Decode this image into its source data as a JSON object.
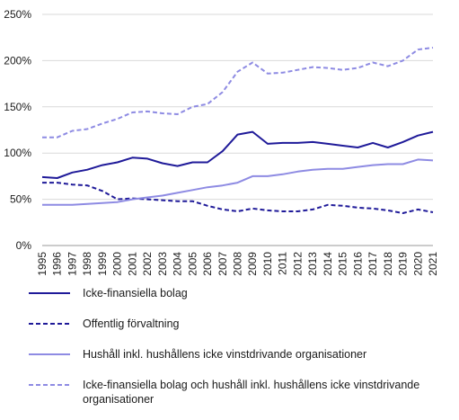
{
  "chart_data": {
    "type": "line",
    "x": [
      "1995",
      "1996",
      "1997",
      "1998",
      "1999",
      "2000",
      "2001",
      "2002",
      "2003",
      "2004",
      "2005",
      "2006",
      "2007",
      "2008",
      "2009",
      "2010",
      "2011",
      "2012",
      "2013",
      "2014",
      "2015",
      "2016",
      "2017",
      "2018",
      "2019",
      "2020",
      "2021"
    ],
    "y_ticks": [
      "0%",
      "50%",
      "100%",
      "150%",
      "200%",
      "250%"
    ],
    "ylim": [
      0,
      250
    ],
    "grid": "horizontal",
    "legend_position": "bottom",
    "series": [
      {
        "name": "Icke-finansiella bolag",
        "color": "#1f1a99",
        "dash": "solid",
        "values": [
          74,
          73,
          79,
          82,
          87,
          90,
          95,
          94,
          89,
          86,
          90,
          90,
          102,
          120,
          123,
          110,
          111,
          111,
          112,
          110,
          108,
          106,
          111,
          106,
          112,
          119,
          123
        ]
      },
      {
        "name": "Offentlig förvaltning",
        "color": "#1f1a99",
        "dash": "dashed",
        "values": [
          68,
          68,
          66,
          65,
          59,
          50,
          51,
          50,
          49,
          48,
          48,
          43,
          39,
          37,
          40,
          38,
          37,
          37,
          39,
          44,
          43,
          41,
          40,
          38,
          35,
          39,
          36
        ]
      },
      {
        "name": "Hushåll inkl. hushållens icke vinstdrivande organisationer",
        "color": "#8e8be3",
        "dash": "solid",
        "values": [
          44,
          44,
          44,
          45,
          46,
          47,
          50,
          52,
          54,
          57,
          60,
          63,
          65,
          68,
          75,
          75,
          77,
          80,
          82,
          83,
          83,
          85,
          87,
          88,
          88,
          93,
          92
        ]
      },
      {
        "name": "Icke-finansiella bolag och hushåll inkl. hushållens icke vinstdrivande organisationer",
        "color": "#8e8be3",
        "dash": "dashed",
        "values": [
          117,
          117,
          124,
          126,
          132,
          137,
          144,
          145,
          143,
          142,
          150,
          153,
          166,
          188,
          198,
          186,
          187,
          190,
          193,
          192,
          190,
          192,
          198,
          194,
          200,
          212,
          214
        ]
      }
    ]
  }
}
